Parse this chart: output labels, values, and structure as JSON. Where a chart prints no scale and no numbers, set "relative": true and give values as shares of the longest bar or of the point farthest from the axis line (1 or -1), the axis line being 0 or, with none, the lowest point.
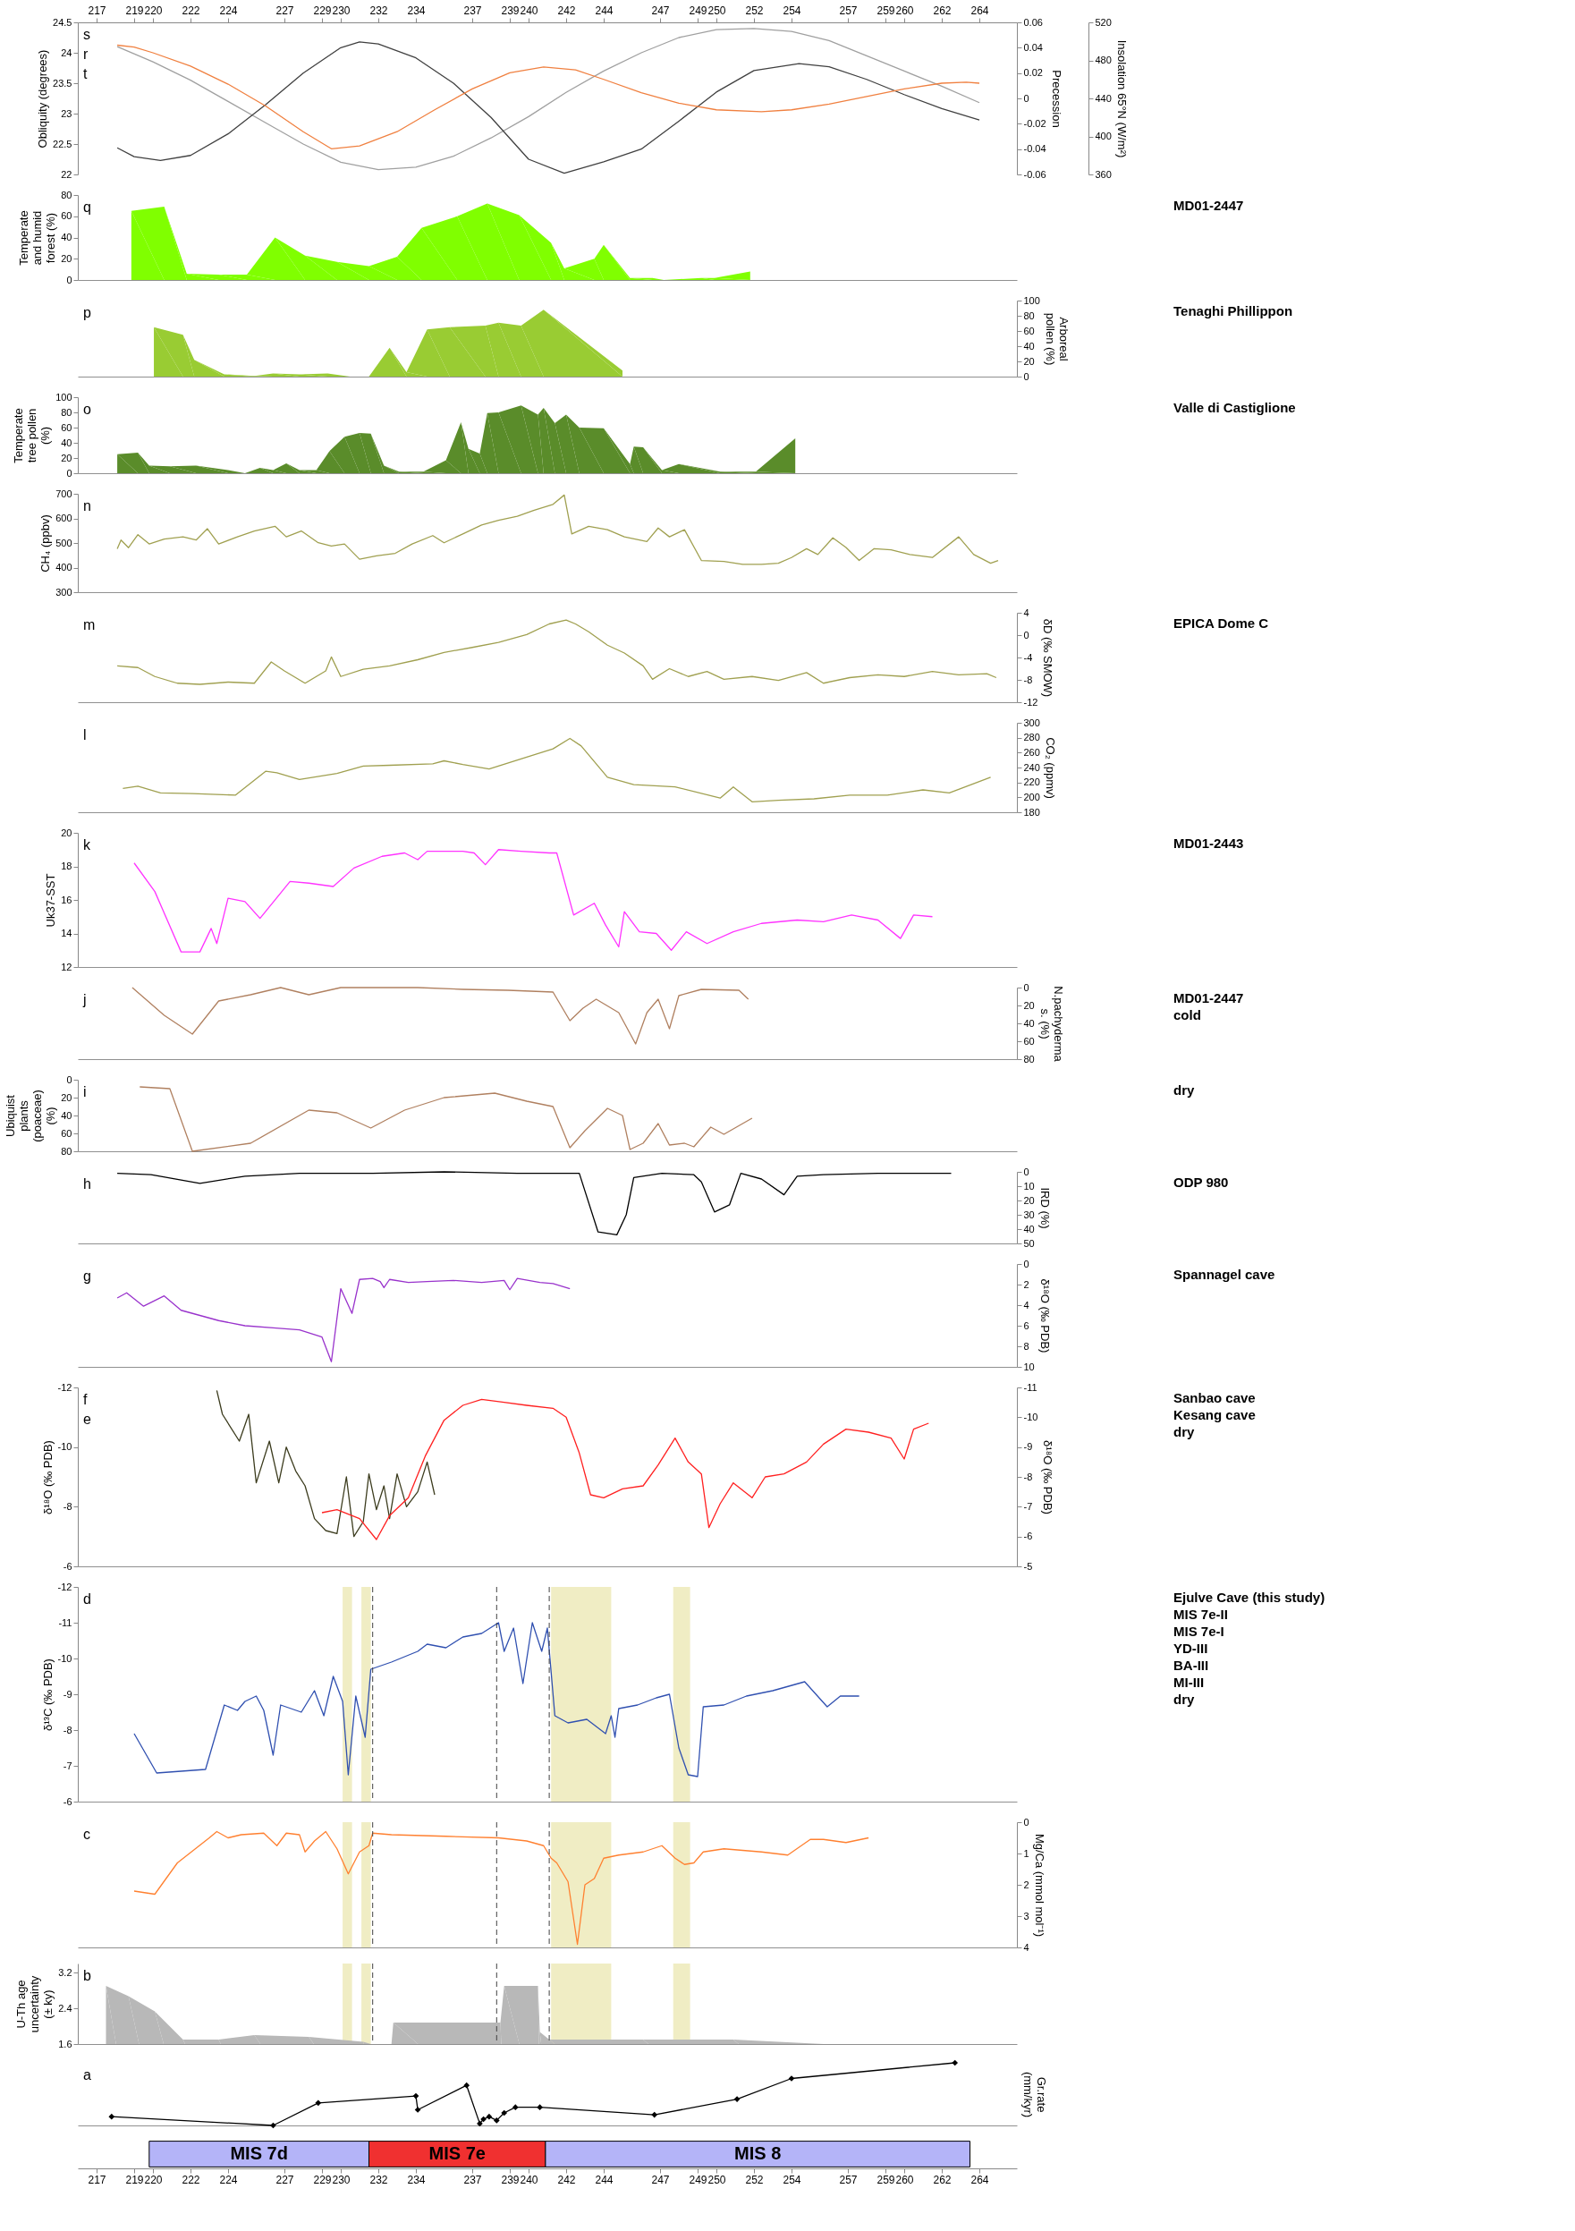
{
  "chart_data": [
    {
      "type": "line",
      "xlim": [
        216,
        266
      ],
      "xticks": [
        217,
        219,
        220,
        222,
        224,
        227,
        229,
        230,
        232,
        234,
        237,
        239,
        240,
        242,
        244,
        247,
        249,
        250,
        252,
        254,
        257,
        259,
        260,
        262,
        264
      ],
      "ylabel": "Obliquity (degrees)",
      "ylim": [
        22,
        24.5
      ],
      "yticks": [
        22,
        22.5,
        23,
        23.5,
        24,
        24.5
      ],
      "y2label": "Precession",
      "y2lim": [
        -0.06,
        0.06
      ],
      "y2ticks": [
        -0.06,
        -0.04,
        -0.02,
        0,
        0.02,
        0.04,
        0.06
      ],
      "y3label": "Insolation 65°N (W/m²)",
      "y3lim": [
        360,
        520
      ],
      "y3ticks": [
        360,
        400,
        440,
        480,
        520
      ],
      "series": [
        {
          "color": "#a0a0a0",
          "axis": "y",
          "x": [
            218.1,
            220,
            222,
            224,
            226,
            228,
            230,
            232,
            234,
            236,
            238,
            240,
            242,
            244,
            246,
            248,
            250,
            252,
            254,
            256,
            258,
            260,
            262,
            264
          ],
          "values": [
            24.1,
            23.85,
            23.55,
            23.2,
            22.85,
            22.5,
            22.2,
            22.08,
            22.12,
            22.3,
            22.6,
            22.95,
            23.35,
            23.7,
            24.0,
            24.25,
            24.38,
            24.4,
            24.35,
            24.2,
            23.95,
            23.7,
            23.45,
            23.18
          ]
        },
        {
          "color": "#404040",
          "axis": "y2",
          "x": [
            218.1,
            219,
            220.4,
            222,
            224,
            226,
            228,
            230,
            231,
            232,
            234,
            236,
            238,
            240,
            241.9,
            244,
            246,
            248,
            250,
            252,
            254.4,
            256,
            258,
            260,
            262,
            264
          ],
          "values": [
            -0.039,
            -0.046,
            -0.049,
            -0.045,
            -0.028,
            -0.005,
            0.02,
            0.04,
            0.0445,
            0.043,
            0.032,
            0.012,
            -0.015,
            -0.048,
            -0.059,
            -0.05,
            -0.04,
            -0.018,
            0.005,
            0.022,
            0.0275,
            0.025,
            0.015,
            0.003,
            -0.008,
            -0.017
          ]
        },
        {
          "color": "#f08040",
          "axis": "y3",
          "x": [
            218.1,
            219,
            220,
            222,
            224,
            226,
            228,
            229.5,
            231,
            233,
            235,
            237,
            239,
            240.8,
            242.5,
            244,
            246,
            248,
            250,
            252.4,
            254,
            256,
            258,
            260,
            262,
            263.3,
            264
          ],
          "values": [
            496,
            494,
            488,
            474,
            455,
            432,
            405,
            387,
            390,
            405,
            428,
            450,
            467,
            473,
            470,
            460,
            446,
            435,
            428,
            426,
            428,
            434,
            442,
            450,
            456,
            457,
            456
          ]
        }
      ],
      "annotations": [
        "s",
        "r",
        "t"
      ]
    },
    {
      "type": "area",
      "xlim": [
        216,
        266
      ],
      "tick_labels": "y",
      "ylabel": "Temperate and humid forest (%)",
      "ylim": [
        0,
        80
      ],
      "yticks": [
        0,
        20,
        40,
        60,
        80
      ],
      "series": [
        {
          "color": "#80ff00",
          "x": [
            218.85,
            220.6,
            221.8,
            223.5,
            225,
            226.5,
            228.1,
            229.8,
            231.5,
            233,
            234.3,
            236.2,
            237.8,
            239.5,
            241.2,
            241.9,
            243.5,
            244,
            245.4,
            246.6,
            247.2,
            249.2,
            249.9,
            251.8
          ],
          "values": [
            65,
            69,
            6,
            5,
            5,
            40,
            23,
            17,
            13,
            22,
            49,
            60,
            72,
            61,
            35,
            11,
            20,
            33,
            2,
            2,
            0,
            2,
            2,
            8
          ]
        }
      ],
      "annotations": [
        "q",
        "MD01-2447"
      ]
    },
    {
      "type": "area",
      "xlim": [
        216,
        266
      ],
      "tick_labels": "y",
      "y2label": "Arboreal pollen (%)",
      "y2lim": [
        0,
        100
      ],
      "y2ticks": [
        0,
        20,
        40,
        60,
        80,
        100
      ],
      "series": [
        {
          "color": "#99cc33",
          "axis": "y2",
          "x": [
            220.05,
            221.6,
            222.2,
            223.8,
            225.4,
            226.4,
            227.8,
            229.3,
            230.5,
            231.5,
            232.6,
            233.5,
            234.6,
            235.8,
            237.7,
            238.4,
            239.6,
            240.8,
            245
          ],
          "values": [
            65,
            55,
            22,
            3,
            1,
            4,
            3,
            4,
            0,
            0,
            38,
            6,
            62,
            65,
            67,
            71,
            67,
            88,
            8
          ]
        }
      ],
      "annotations": [
        "p",
        "Tenaghi Phillippon"
      ]
    },
    {
      "type": "area",
      "xlim": [
        216,
        266
      ],
      "tick_labels": "y",
      "ylabel": "Temperate tree pollen (%)",
      "ylim": [
        0,
        100
      ],
      "yticks": [
        0,
        20,
        40,
        60,
        80,
        100
      ],
      "series": [
        {
          "color": "#5a8c2a",
          "x": [
            218.1,
            219.2,
            219.8,
            220.9,
            222.3,
            224,
            224.9,
            225.7,
            226.4,
            227.1,
            227.8,
            228.7,
            229.4,
            230.2,
            231,
            231.6,
            232.3,
            233.1,
            234.4,
            235.6,
            236.4,
            236.8,
            237.4,
            237.8,
            238.4,
            239.6,
            240.5,
            240.8,
            241.4,
            242,
            242.7,
            244,
            245.4,
            245.6,
            246.1,
            247.1,
            248,
            250.2,
            252.1,
            254.2
          ],
          "values": [
            25,
            27,
            10,
            9,
            10,
            4,
            0,
            7,
            4,
            13,
            4,
            4,
            29,
            48,
            53,
            52,
            10,
            2,
            2,
            17,
            67,
            32,
            26,
            79,
            80,
            89,
            77,
            86,
            66,
            77,
            60,
            59,
            12,
            35,
            34,
            4,
            12,
            2,
            2,
            46
          ]
        }
      ],
      "annotations": [
        "o",
        "Valle di Castiglione"
      ]
    },
    {
      "type": "line",
      "xlim": [
        216,
        266
      ],
      "tick_labels": "y",
      "ylabel": "CH₄ (ppbv)",
      "ylim": [
        300,
        700
      ],
      "yticks": [
        300,
        400,
        500,
        600,
        700
      ],
      "series": [
        {
          "color": "#a0a050",
          "x": [
            218.1,
            218.3,
            218.7,
            219.2,
            219.8,
            220.6,
            221.6,
            222.3,
            222.9,
            223.5,
            224.5,
            225.4,
            226.5,
            227.1,
            227.9,
            228.8,
            229.5,
            230.2,
            231,
            231.9,
            232.9,
            233.8,
            234.9,
            235.5,
            236.5,
            237.5,
            238.4,
            239.4,
            240.3,
            241.3,
            241.9,
            242.3,
            243.2,
            244.2,
            245.1,
            246.3,
            246.9,
            247.5,
            248.3,
            249.2,
            250.4,
            251.4,
            252.4,
            253.3,
            254,
            254.8,
            255.4,
            256.2,
            256.9,
            257.6,
            258.4,
            259.3,
            260.3,
            261.5,
            262.9,
            263.7,
            264.6,
            265
          ],
          "values": [
            476,
            512,
            481,
            534,
            496,
            516,
            525,
            512,
            558,
            496,
            525,
            549,
            568,
            525,
            549,
            501,
            488,
            496,
            434,
            448,
            458,
            496,
            530,
            501,
            537,
            573,
            592,
            609,
            633,
            657,
            695,
            537,
            568,
            554,
            525,
            506,
            561,
            525,
            554,
            429,
            425,
            413,
            413,
            418,
            441,
            477,
            453,
            521,
            482,
            429,
            477,
            472,
            453,
            441,
            525,
            453,
            418,
            429
          ]
        }
      ],
      "annotations": [
        "n"
      ]
    },
    {
      "type": "line",
      "xlim": [
        216,
        266
      ],
      "tick_labels": "y",
      "y2label": "δD (‰ SMOW)",
      "y2lim": [
        -12,
        4
      ],
      "y2ticks": [
        -12,
        -8,
        -4,
        0,
        4
      ],
      "series": [
        {
          "color": "#a0a050",
          "axis": "y2",
          "x": [
            218.1,
            219.2,
            220.1,
            221.3,
            222.5,
            224,
            225.4,
            226.3,
            227,
            228.1,
            229.2,
            229.5,
            230,
            231.2,
            232.6,
            234.1,
            235.5,
            237,
            238.4,
            239.9,
            241.1,
            242,
            242.5,
            243.2,
            244.2,
            245.1,
            246.1,
            246.6,
            247.5,
            248.5,
            249.5,
            250.4,
            251.9,
            253.3,
            254.8,
            255.7,
            257.1,
            258.6,
            260,
            261.5,
            262.9,
            264.4,
            264.9
          ],
          "values": [
            -5.5,
            -5.8,
            -7.4,
            -8.6,
            -8.8,
            -8.4,
            -8.6,
            -4.8,
            -6.4,
            -8.6,
            -6.4,
            -3.9,
            -7.4,
            -6.1,
            -5.5,
            -4.4,
            -3.1,
            -2.2,
            -1.3,
            0.1,
            2.0,
            2.7,
            2.0,
            0.6,
            -1.8,
            -3.2,
            -5.5,
            -7.9,
            -6,
            -7.4,
            -6.5,
            -7.9,
            -7.4,
            -8.1,
            -6.7,
            -8.6,
            -7.6,
            -7.1,
            -7.4,
            -6.5,
            -7.1,
            -6.9,
            -7.6
          ]
        }
      ],
      "annotations": [
        "m",
        "EPICA Dome C"
      ]
    },
    {
      "type": "line",
      "xlim": [
        216,
        266
      ],
      "tick_labels": "y",
      "y2label": "CO₂ (ppmv)",
      "y2lim": [
        180,
        300
      ],
      "y2ticks": [
        180,
        200,
        220,
        240,
        260,
        280,
        300
      ],
      "series": [
        {
          "color": "#a0a050",
          "axis": "y2",
          "x": [
            218.4,
            219.2,
            220.4,
            222.1,
            224.4,
            226,
            226.6,
            227.8,
            229.8,
            231.2,
            232.6,
            234.9,
            235.5,
            236.5,
            237.9,
            239.9,
            241.3,
            242.2,
            242.8,
            244.2,
            245.6,
            247.8,
            250.2,
            250.9,
            251.9,
            253.3,
            255.2,
            257.1,
            259.1,
            261,
            262.4,
            264.6
          ],
          "values": [
            212,
            215,
            206,
            205,
            203,
            235,
            233,
            224,
            232,
            242,
            243,
            245,
            249,
            244,
            238,
            254,
            265,
            279,
            269,
            227,
            217,
            214,
            199,
            214,
            194,
            196,
            198,
            203,
            203,
            210,
            206,
            227
          ]
        }
      ],
      "annotations": [
        "l"
      ]
    },
    {
      "type": "line",
      "xlim": [
        216,
        266
      ],
      "tick_labels": "y",
      "ylabel": "Uk37-SST",
      "ylim": [
        12,
        20
      ],
      "yticks": [
        12,
        14,
        16,
        18,
        20
      ],
      "series": [
        {
          "color": "#ff33ff",
          "x": [
            219,
            220.1,
            221.5,
            222.5,
            223.1,
            223.4,
            224,
            224.9,
            225.7,
            227.3,
            228.3,
            229.6,
            230.7,
            232.2,
            233.4,
            234.1,
            234.6,
            235.5,
            236.5,
            237.1,
            237.7,
            238.4,
            239.6,
            241.1,
            241.5,
            242.4,
            243.5,
            244.1,
            244.8,
            245.1,
            245.9,
            246.8,
            247.6,
            248.4,
            249.5,
            250.9,
            252.4,
            254.3,
            255.7,
            257.2,
            258.6,
            259.8,
            260.5,
            261.5
          ],
          "values": [
            18.2,
            16.5,
            12.9,
            12.9,
            14.3,
            13.4,
            16.1,
            15.9,
            14.9,
            17.1,
            17.0,
            16.8,
            17.9,
            18.6,
            18.8,
            18.4,
            18.9,
            18.9,
            18.9,
            18.8,
            18.1,
            19.0,
            18.9,
            18.8,
            18.8,
            15.1,
            15.8,
            14.5,
            13.2,
            15.3,
            14.1,
            14.0,
            13.0,
            14.1,
            13.4,
            14.1,
            14.6,
            14.8,
            14.7,
            15.1,
            14.8,
            13.7,
            15.1,
            15.0
          ]
        }
      ],
      "annotations": [
        "k",
        "MD01-2443"
      ]
    },
    {
      "type": "line",
      "xlim": [
        216,
        266
      ],
      "tick_labels": "y",
      "y2label": "N.pachyderma s. (%)",
      "y2lim": [
        80,
        0
      ],
      "y2ticks": [
        0,
        20,
        40,
        60,
        80
      ],
      "series": [
        {
          "color": "#b08060",
          "axis": "y2",
          "x": [
            218.9,
            220.6,
            222.1,
            223.5,
            225.2,
            226.8,
            228.3,
            230,
            234.1,
            236.5,
            238.9,
            241.3,
            242.2,
            242.9,
            243.6,
            244.8,
            245.7,
            246.3,
            246.9,
            247.5,
            248,
            249.2,
            251.2,
            251.7
          ],
          "values": [
            0,
            31,
            52,
            15,
            8,
            0,
            8,
            0,
            0,
            2,
            3,
            5,
            37,
            23,
            13,
            28,
            63,
            28,
            13,
            46,
            9,
            2,
            3,
            13
          ]
        }
      ],
      "annotations": [
        "j",
        "MD01-2447",
        "cold"
      ]
    },
    {
      "type": "line",
      "xlim": [
        216,
        266
      ],
      "tick_labels": "y",
      "ylabel": "Ubiquist plants (poaceae) (%)",
      "ylim": [
        80,
        0
      ],
      "yticks": [
        0,
        20,
        40,
        60,
        80
      ],
      "series": [
        {
          "color": "#b08060",
          "x": [
            219.3,
            220.9,
            222.1,
            225.2,
            228.3,
            229.8,
            231.6,
            233.4,
            235.5,
            238.2,
            239.9,
            241.3,
            242.2,
            243,
            244.2,
            245,
            245.4,
            246.1,
            246.9,
            247.5,
            248.3,
            248.8,
            249.7,
            250.4,
            251.9
          ],
          "values": [
            8,
            10,
            80,
            71,
            34,
            37,
            54,
            34,
            20,
            15,
            24,
            30,
            76,
            57,
            32,
            40,
            78,
            71,
            49,
            73,
            71,
            75,
            53,
            61,
            43
          ]
        }
      ],
      "annotations": [
        "i",
        "dry"
      ]
    },
    {
      "type": "line",
      "xlim": [
        216,
        266
      ],
      "tick_labels": "y",
      "y2label": "IRD (%)",
      "y2lim": [
        50,
        0
      ],
      "y2ticks": [
        0,
        10,
        20,
        30,
        40,
        50
      ],
      "series": [
        {
          "color": "#000000",
          "axis": "y2",
          "x": [
            218.1,
            219.9,
            222.5,
            224.9,
            227.8,
            231.7,
            235.5,
            239.4,
            242.7,
            243.7,
            244.7,
            245.2,
            245.6,
            247.1,
            248.8,
            249.2,
            249.9,
            250.7,
            251.3,
            252.4,
            253.6,
            254.3,
            255.7,
            258.6,
            262.5
          ],
          "values": [
            1,
            2,
            8,
            3,
            1,
            1,
            0,
            1,
            1,
            42,
            44,
            30,
            4,
            1,
            2,
            7,
            28,
            23,
            1,
            5,
            16,
            3,
            2,
            1,
            1
          ]
        }
      ],
      "annotations": [
        "h",
        "ODP 980"
      ]
    },
    {
      "type": "line",
      "xlim": [
        216,
        266
      ],
      "tick_labels": "y",
      "y2label": "δ¹⁸O (‰ PDB)",
      "y2lim": [
        10,
        0
      ],
      "y2ticks": [
        0,
        2,
        4,
        6,
        8,
        10
      ],
      "series": [
        {
          "color": "#9933cc",
          "axis": "y2",
          "x": [
            218.1,
            218.6,
            219.5,
            220.6,
            221.5,
            222.5,
            223.5,
            224.9,
            226.4,
            227.8,
            229,
            229.5,
            230,
            230.6,
            231,
            231.7,
            232.1,
            232.3,
            232.6,
            233.6,
            234.6,
            236,
            237.5,
            238.7,
            239,
            239.4,
            240.6,
            241.3,
            242.2
          ],
          "values": [
            3.3,
            2.8,
            4.1,
            3.1,
            4.5,
            5.0,
            5.5,
            6.0,
            6.2,
            6.4,
            7.1,
            9.5,
            2.4,
            4.8,
            1.5,
            1.4,
            1.7,
            2.3,
            1.5,
            1.8,
            1.7,
            1.6,
            1.8,
            1.6,
            2.5,
            1.4,
            1.8,
            1.9,
            2.4
          ]
        }
      ],
      "annotations": [
        "g",
        "Spannagel cave"
      ]
    },
    {
      "type": "line",
      "xlim": [
        216,
        266
      ],
      "tick_labels": "y",
      "ylabel": "δ¹⁸O (‰ PDB)",
      "ylim": [
        -6,
        -12
      ],
      "yticks": [
        -12,
        -10,
        -8,
        -6
      ],
      "y2label": "δ¹⁸O (‰ PDB)",
      "y2lim": [
        -5,
        -11
      ],
      "y2ticks": [
        -11,
        -10,
        -9,
        -8,
        -7,
        -6,
        -5
      ],
      "series": [
        {
          "color": "#3c3c1e",
          "axis": "y",
          "x": [
            223.4,
            223.7,
            224.6,
            225.1,
            225.5,
            226.2,
            226.7,
            227.1,
            227.6,
            228.1,
            228.6,
            229.2,
            229.8,
            230.3,
            230.7,
            231.2,
            231.5,
            231.9,
            232.3,
            232.6,
            233,
            233.5,
            234.1,
            234.6,
            235
          ],
          "values": [
            -11.9,
            -11.1,
            -10.2,
            -11.1,
            -8.8,
            -10.2,
            -8.8,
            -10.0,
            -9.2,
            -8.7,
            -7.6,
            -7.2,
            -7.1,
            -9.0,
            -7.0,
            -7.5,
            -9.1,
            -7.9,
            -8.7,
            -7.6,
            -9.1,
            -8.0,
            -8.5,
            -9.5,
            -8.4
          ]
        },
        {
          "color": "#ff2020",
          "axis": "y2",
          "x": [
            229,
            229.8,
            231,
            231.9,
            232.6,
            233.6,
            234.5,
            235.5,
            236.5,
            237.5,
            238.7,
            239.9,
            241.3,
            242,
            242.7,
            243.3,
            244,
            245,
            246.1,
            246.9,
            247.8,
            248.5,
            249.2,
            249.6,
            250.2,
            250.9,
            251.9,
            252.6,
            253.6,
            254.8,
            255.7,
            256.9,
            258.1,
            259.3,
            260,
            260.5,
            261.3
          ],
          "values": [
            -6.8,
            -6.9,
            -6.6,
            -5.9,
            -6.7,
            -7.3,
            -8.7,
            -9.9,
            -10.4,
            -10.6,
            -10.5,
            -10.4,
            -10.3,
            -10.0,
            -8.8,
            -7.4,
            -7.3,
            -7.6,
            -7.7,
            -8.4,
            -9.3,
            -8.5,
            -8.1,
            -6.3,
            -7.1,
            -7.8,
            -7.3,
            -8.0,
            -8.1,
            -8.5,
            -9.1,
            -9.6,
            -9.5,
            -9.3,
            -8.6,
            -9.6,
            -9.8
          ]
        }
      ],
      "annotations": [
        "f",
        "e",
        "Sanbao cave",
        "Kesang cave",
        "dry"
      ]
    },
    {
      "type": "line",
      "xlim": [
        216,
        266
      ],
      "tick_labels": "y",
      "ylabel": "δ¹³C (‰ PDB)",
      "ylim": [
        -6,
        -12
      ],
      "yticks": [
        -12,
        -11,
        -10,
        -9,
        -8,
        -7,
        -6
      ],
      "series": [
        {
          "color": "#3050b0",
          "x": [
            219,
            220.2,
            222.8,
            223.8,
            224.5,
            224.9,
            225.5,
            225.9,
            226.4,
            226.8,
            227.9,
            228.6,
            229.1,
            229.6,
            230.1,
            230.4,
            230.8,
            231.3,
            231.6,
            232.7,
            234.1,
            234.6,
            235.6,
            236.5,
            237.5,
            238.4,
            238.7,
            239.2,
            239.7,
            240.2,
            240.7,
            241,
            241.4,
            242.1,
            243.1,
            244.1,
            244.4,
            244.6,
            244.8,
            245.8,
            246.8,
            247.5,
            248,
            248.5,
            249,
            249.3,
            250.4,
            251.6,
            253,
            254.7,
            255.9,
            256.6,
            257.6
          ],
          "values": [
            -7.9,
            -6.8,
            -6.9,
            -8.7,
            -8.55,
            -8.8,
            -8.95,
            -8.55,
            -7.3,
            -8.7,
            -8.5,
            -9.1,
            -8.4,
            -9.5,
            -8.8,
            -6.75,
            -8.95,
            -7.8,
            -9.7,
            -9.9,
            -10.2,
            -10.4,
            -10.3,
            -10.6,
            -10.7,
            -11.0,
            -10.2,
            -10.85,
            -9.3,
            -11.0,
            -10.2,
            -10.85,
            -8.4,
            -8.2,
            -8.3,
            -7.9,
            -8.4,
            -7.8,
            -8.6,
            -8.7,
            -8.9,
            -9.0,
            -7.5,
            -6.75,
            -6.7,
            -8.65,
            -8.7,
            -8.95,
            -9.1,
            -9.35,
            -8.65,
            -8.95,
            -8.95
          ]
        }
      ],
      "bands": [
        {
          "axis": "x",
          "from": 230.1,
          "to": 230.6,
          "color": "#f0edc4"
        },
        {
          "axis": "x",
          "from": 231.1,
          "to": 231.6,
          "color": "#f0edc4"
        },
        {
          "axis": "x",
          "from": 241.2,
          "to": 244.4,
          "color": "#f0edc4"
        },
        {
          "axis": "x",
          "from": 247.7,
          "to": 248.6,
          "color": "#f0edc4"
        }
      ],
      "ref_lines": [
        {
          "axis": "x",
          "value": 231.7,
          "line_style": "dashed",
          "color": "#404040"
        },
        {
          "axis": "x",
          "value": 238.3,
          "line_style": "dashed",
          "color": "#404040"
        },
        {
          "axis": "x",
          "value": 241.1,
          "line_style": "dashed",
          "color": "#404040"
        }
      ],
      "annotations": [
        "d",
        "Ejulve Cave (this study)",
        "MIS 7e-II",
        "MIS 7e-I",
        "YD-III",
        "BA-III",
        "MI-III",
        "dry"
      ]
    },
    {
      "type": "line",
      "xlim": [
        216,
        266
      ],
      "tick_labels": "y",
      "y2label": "Mg/Ca (mmol mol⁻¹)",
      "y2lim": [
        4,
        0
      ],
      "y2ticks": [
        0,
        1,
        2,
        3,
        4
      ],
      "series": [
        {
          "color": "#ff8030",
          "axis": "y2",
          "x": [
            219,
            220.1,
            221.3,
            223,
            223.4,
            224,
            224.7,
            225.9,
            226.6,
            227.1,
            227.8,
            228.1,
            228.6,
            229.2,
            229.8,
            230.4,
            231,
            231.5,
            231.7,
            232.7,
            235.6,
            238.4,
            239.9,
            240.8,
            241.2,
            241.5,
            242.1,
            242.6,
            243,
            243.5,
            244,
            244.8,
            246.1,
            247.1,
            247.8,
            248.3,
            248.8,
            249.3,
            250.4,
            252.4,
            253.8,
            255,
            255.7,
            256.9,
            258.1
          ],
          "values": [
            2.2,
            2.3,
            1.3,
            0.5,
            0.3,
            0.5,
            0.4,
            0.35,
            0.75,
            0.35,
            0.4,
            0.95,
            0.6,
            0.3,
            0.85,
            1.65,
            0.95,
            0.75,
            0.35,
            0.4,
            0.45,
            0.5,
            0.6,
            0.75,
            1.15,
            1.3,
            1.9,
            3.9,
            2.0,
            1.8,
            1.15,
            1.05,
            0.95,
            0.75,
            1.15,
            1.35,
            1.3,
            0.95,
            0.85,
            0.95,
            1.05,
            0.55,
            0.55,
            0.65,
            0.5
          ]
        }
      ],
      "bands": [
        {
          "axis": "x",
          "from": 230.1,
          "to": 230.6,
          "color": "#f0edc4"
        },
        {
          "axis": "x",
          "from": 231.1,
          "to": 231.6,
          "color": "#f0edc4"
        },
        {
          "axis": "x",
          "from": 241.2,
          "to": 244.4,
          "color": "#f0edc4"
        },
        {
          "axis": "x",
          "from": 247.7,
          "to": 248.6,
          "color": "#f0edc4"
        }
      ],
      "ref_lines": [
        {
          "axis": "x",
          "value": 231.7,
          "line_style": "dashed",
          "color": "#404040"
        },
        {
          "axis": "x",
          "value": 238.3,
          "line_style": "dashed",
          "color": "#404040"
        },
        {
          "axis": "x",
          "value": 241.1,
          "line_style": "dashed",
          "color": "#404040"
        }
      ],
      "annotations": [
        "c"
      ]
    },
    {
      "type": "area",
      "xlim": [
        216,
        266
      ],
      "tick_labels": "y",
      "ylabel": "U-Th age uncertainty (± ky)",
      "ylim": [
        1.6,
        3.4
      ],
      "yticks": [
        1.6,
        2.4,
        3.2
      ],
      "series": [
        {
          "color": "#b8b8b8",
          "x": [
            217.5,
            218.7,
            220.1,
            221.6,
            223.5,
            225.4,
            228.3,
            231.2,
            231.6,
            232.7,
            232.8,
            238.5,
            238.7,
            240.5,
            240.6,
            241.1,
            246.1,
            250.9,
            255.7,
            263.4
          ],
          "values": [
            2.9,
            2.67,
            2.33,
            1.7,
            1.7,
            1.8,
            1.76,
            1.65,
            1.6,
            1.6,
            2.08,
            2.08,
            2.9,
            2.9,
            1.87,
            1.7,
            1.7,
            1.7,
            1.6,
            1.6
          ]
        }
      ],
      "bands": [
        {
          "axis": "x",
          "from": 230.1,
          "to": 230.6,
          "color": "#f0edc4"
        },
        {
          "axis": "x",
          "from": 231.1,
          "to": 231.6,
          "color": "#f0edc4"
        },
        {
          "axis": "x",
          "from": 241.2,
          "to": 244.4,
          "color": "#f0edc4"
        },
        {
          "axis": "x",
          "from": 247.7,
          "to": 248.6,
          "color": "#f0edc4"
        }
      ],
      "ref_lines": [
        {
          "axis": "x",
          "value": 231.7,
          "line_style": "dashed",
          "color": "#404040"
        },
        {
          "axis": "x",
          "value": 238.3,
          "line_style": "dashed",
          "color": "#404040"
        },
        {
          "axis": "x",
          "value": 241.1,
          "line_style": "dashed",
          "color": "#404040"
        }
      ],
      "annotations": [
        "b"
      ]
    },
    {
      "type": "line",
      "xlim": [
        216,
        266
      ],
      "tick_labels": false,
      "relative": true,
      "marker": "diamond",
      "y2label": "Gr.rate (mm/kyr)",
      "series": [
        {
          "color": "#000000",
          "axis": "y2",
          "x": [
            217.8,
            226.4,
            228.8,
            234,
            234.1,
            236.7,
            237.4,
            237.6,
            237.9,
            238.3,
            238.7,
            239.3,
            240.6,
            246.7,
            251.1,
            254,
            262.7
          ],
          "values": [
            0.14,
            0,
            0.36,
            0.47,
            0.25,
            0.64,
            0.03,
            0.1,
            0.14,
            0.08,
            0.2,
            0.29,
            0.29,
            0.17,
            0.42,
            0.75,
            1
          ]
        }
      ],
      "annotations": [
        "a"
      ]
    },
    {
      "type": "bar",
      "orientation": "horizontal",
      "xlim": [
        216,
        266
      ],
      "xticks": [
        217,
        219,
        220,
        222,
        224,
        227,
        229,
        230,
        232,
        234,
        237,
        239,
        240,
        242,
        244,
        247,
        249,
        250,
        252,
        254,
        257,
        259,
        260,
        262,
        264
      ],
      "tick_labels": "x",
      "categories": [
        null
      ],
      "series": [
        {
          "name": "MIS 7d",
          "color": "#b4b4f8",
          "values": [
            11.7
          ],
          "base": [
            219.8
          ]
        },
        {
          "name": "MIS 7e",
          "color": "#f03030",
          "values": [
            9.4
          ],
          "base": [
            231.5
          ]
        },
        {
          "name": "MIS 8",
          "color": "#b4b4f8",
          "values": [
            22.6
          ],
          "base": [
            240.9
          ]
        }
      ]
    }
  ]
}
